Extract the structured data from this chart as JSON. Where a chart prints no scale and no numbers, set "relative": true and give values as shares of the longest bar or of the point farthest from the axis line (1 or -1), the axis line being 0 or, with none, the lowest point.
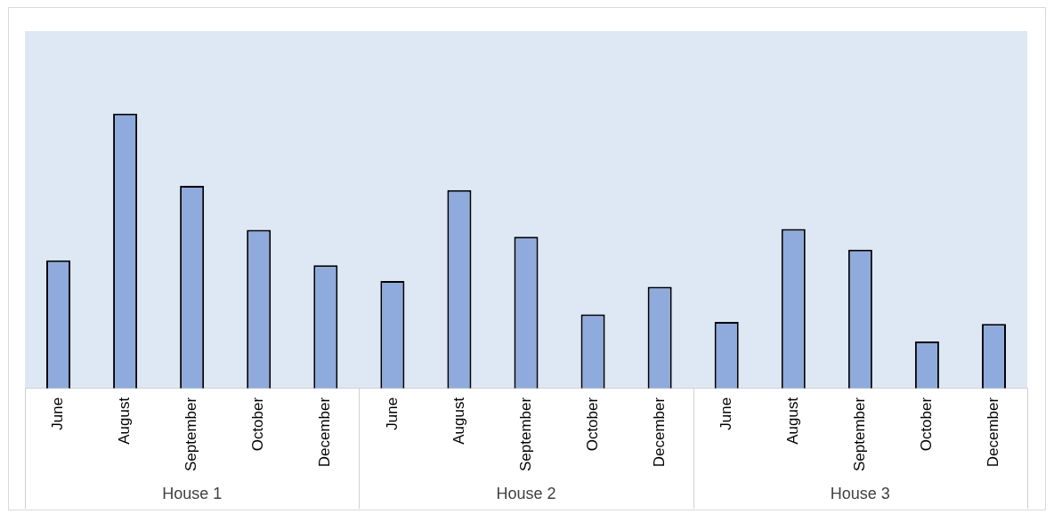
{
  "chart_data": {
    "type": "bar",
    "relative": true,
    "grid": false,
    "legend": false,
    "categories": [
      "June",
      "August",
      "September",
      "October",
      "December",
      "June",
      "August",
      "September",
      "October",
      "December",
      "June",
      "August",
      "September",
      "October",
      "December"
    ],
    "values": [
      0.466,
      1,
      0.737,
      0.577,
      0.448,
      0.391,
      0.722,
      0.552,
      0.27,
      0.37,
      0.242,
      0.58,
      0.505,
      0.171,
      0.235
    ],
    "color": "#8faadc",
    "annotations": [
      "House 1",
      "House 2",
      "House 3"
    ]
  }
}
